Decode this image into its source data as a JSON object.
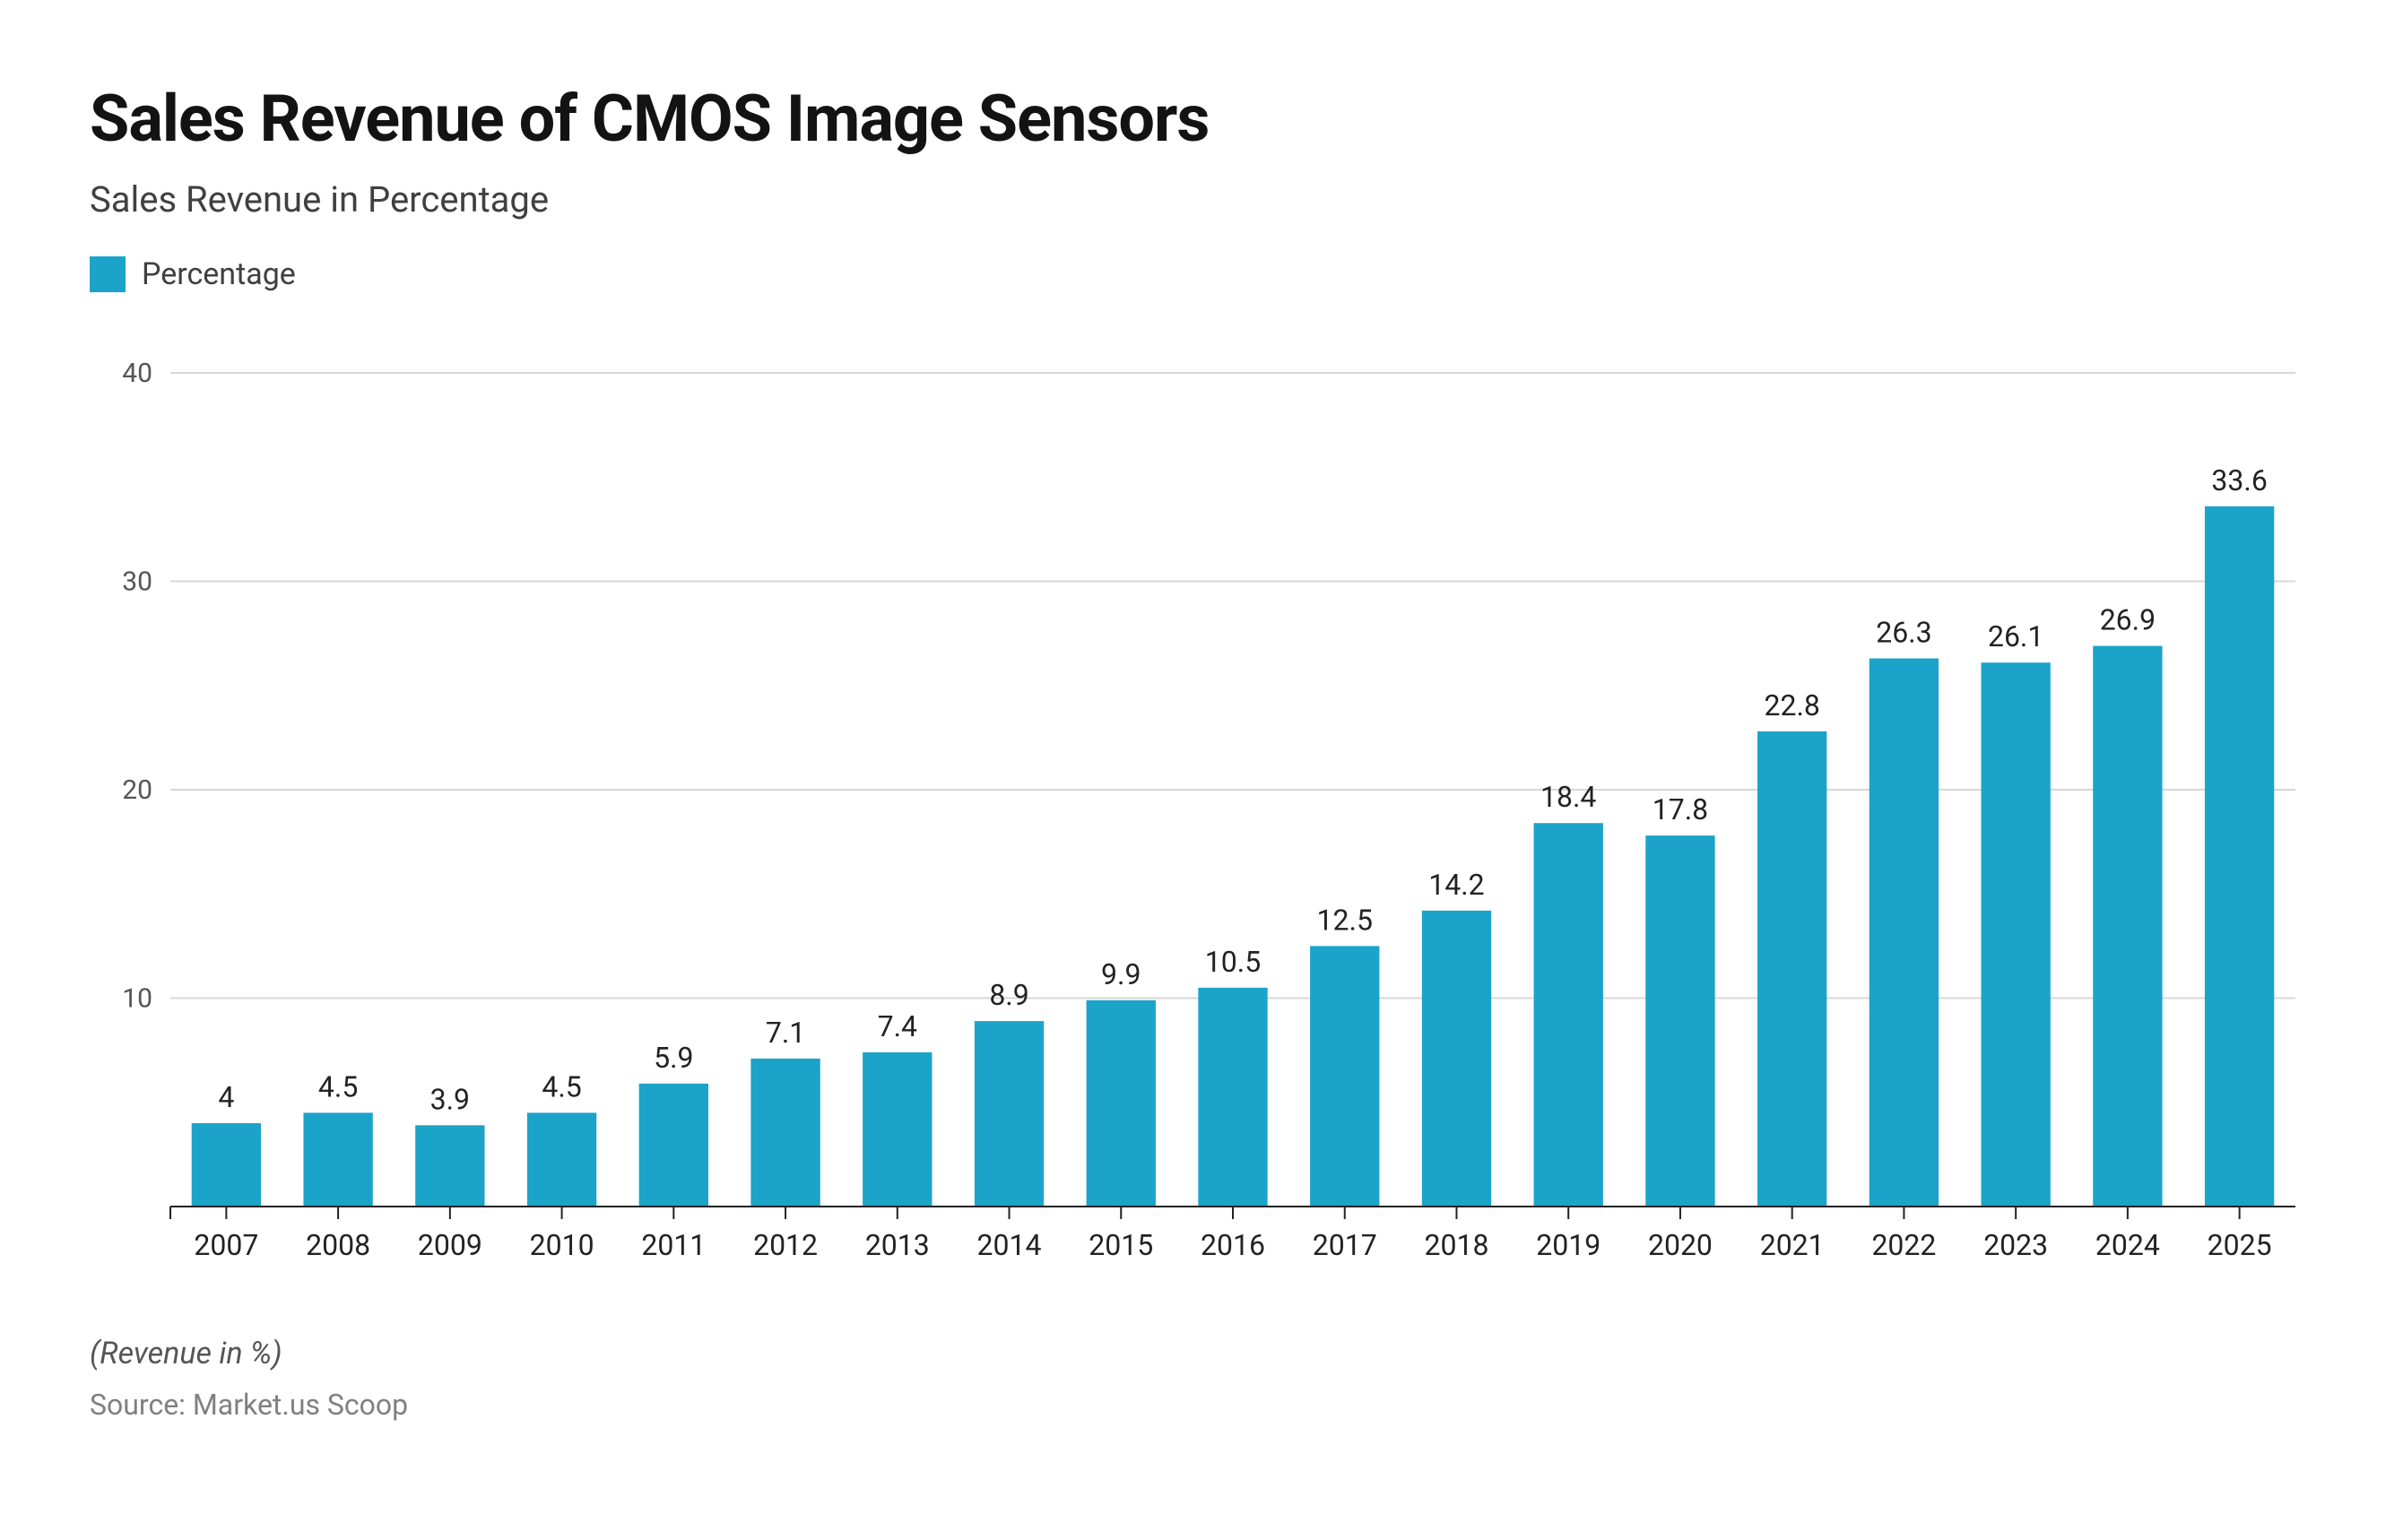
{
  "header": {
    "title": "Sales Revenue of CMOS Image Sensors",
    "subtitle": "Sales Revenue in Percentage"
  },
  "legend": {
    "label": "Percentage",
    "swatch_color": "#1ca3c9"
  },
  "chart": {
    "type": "bar",
    "categories": [
      "2007",
      "2008",
      "2009",
      "2010",
      "2011",
      "2012",
      "2013",
      "2014",
      "2015",
      "2016",
      "2017",
      "2018",
      "2019",
      "2020",
      "2021",
      "2022",
      "2023",
      "2024",
      "2025"
    ],
    "values": [
      4,
      4.5,
      3.9,
      4.5,
      5.9,
      7.1,
      7.4,
      8.9,
      9.9,
      10.5,
      12.5,
      14.2,
      18.4,
      17.8,
      22.8,
      26.3,
      26.1,
      26.9,
      33.6
    ],
    "value_labels": [
      "4",
      "4.5",
      "3.9",
      "4.5",
      "5.9",
      "7.1",
      "7.4",
      "8.9",
      "9.9",
      "10.5",
      "12.5",
      "14.2",
      "18.4",
      "17.8",
      "22.8",
      "26.3",
      "26.1",
      "26.9",
      "33.6"
    ],
    "bar_color": "#1ca3c9",
    "ylim": [
      0,
      40
    ],
    "ytick_step": 10,
    "ytick_labels": [
      "0",
      "10",
      "20",
      "30",
      "40"
    ],
    "grid_color": "#d7d7d7",
    "axis_color": "#222222",
    "background_color": "#ffffff",
    "bar_width_ratio": 0.62,
    "label_fontsize": 32,
    "tick_fontsize": 30,
    "xtick_fontsize": 32
  },
  "footer": {
    "note": "(Revenue in %)",
    "source": "Source: Market.us Scoop"
  }
}
